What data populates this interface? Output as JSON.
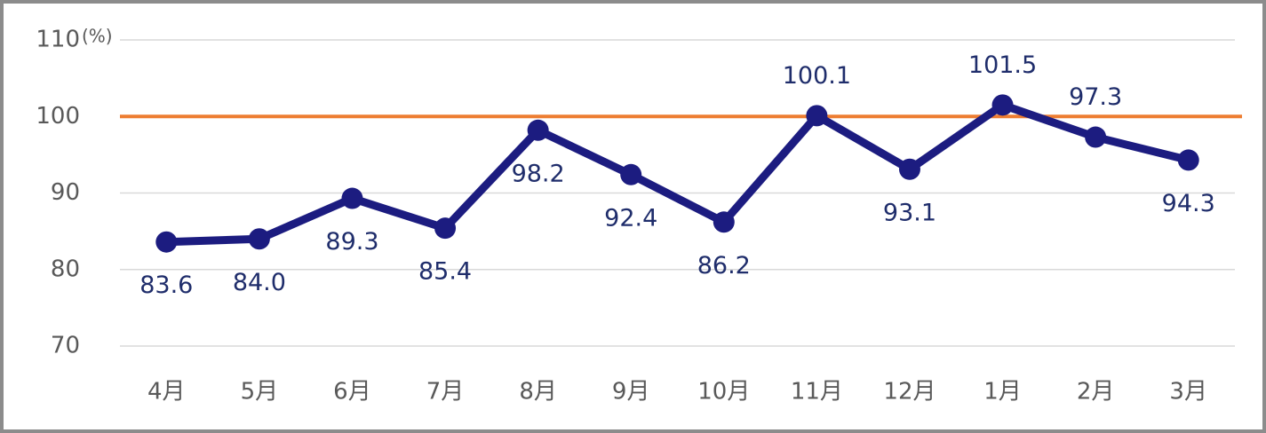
{
  "chart_data": {
    "type": "line",
    "y_unit_label": "(%)",
    "categories": [
      "4月",
      "5月",
      "6月",
      "7月",
      "8月",
      "9月",
      "10月",
      "11月",
      "12月",
      "1月",
      "2月",
      "3月"
    ],
    "series": [
      {
        "color": "#1c1c80",
        "values": [
          83.6,
          84.0,
          89.3,
          85.4,
          98.2,
          92.4,
          86.2,
          100.1,
          93.1,
          101.5,
          97.3,
          94.3
        ],
        "value_labels": [
          "83.6",
          "84.0",
          "89.3",
          "85.4",
          "98.2",
          "92.4",
          "86.2",
          "100.1",
          "93.1",
          "101.5",
          "97.3",
          "94.3"
        ]
      }
    ],
    "reference_line": {
      "value": 100,
      "color": "#ed7d31"
    },
    "ylim": [
      70,
      110
    ],
    "yticks": [
      70,
      80,
      90,
      100,
      110
    ],
    "grid": true
  }
}
